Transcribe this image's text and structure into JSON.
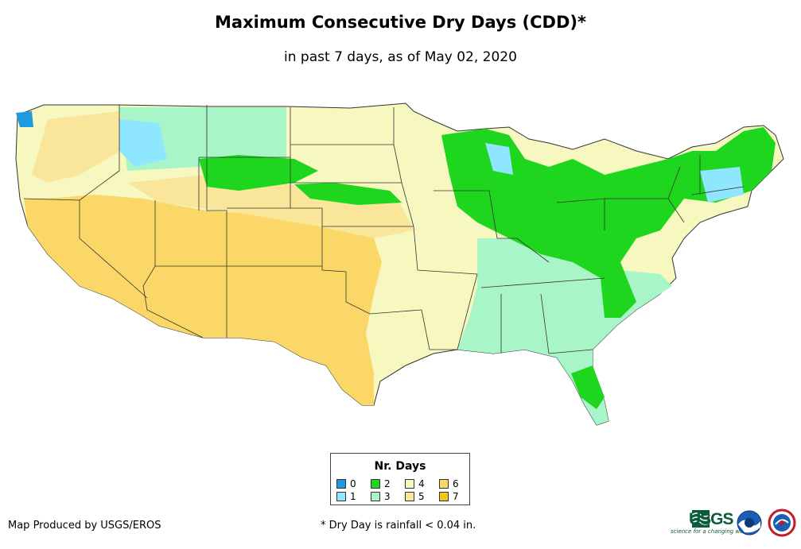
{
  "title": "Maximum Consecutive Dry Days (CDD)*",
  "subtitle": "in past 7 days, as of May 02, 2020",
  "legend": {
    "title": "Nr. Days",
    "items": [
      {
        "label": "0",
        "color": "#1f9ae0"
      },
      {
        "label": "1",
        "color": "#8fe6ff"
      },
      {
        "label": "2",
        "color": "#1fd61f"
      },
      {
        "label": "3",
        "color": "#a8f5c8"
      },
      {
        "label": "4",
        "color": "#f7f7c0"
      },
      {
        "label": "5",
        "color": "#fae69a"
      },
      {
        "label": "6",
        "color": "#fad766"
      },
      {
        "label": "7",
        "color": "#f5c518"
      }
    ]
  },
  "credit": "Map Produced by USGS/EROS",
  "footnote": "* Dry Day is rainfall < 0.04 in.",
  "logos": {
    "usgs": "USGS",
    "usgs_tagline": "science for a changing world",
    "noaa": "noaa-logo-icon",
    "nws": "nws-logo-icon"
  }
}
